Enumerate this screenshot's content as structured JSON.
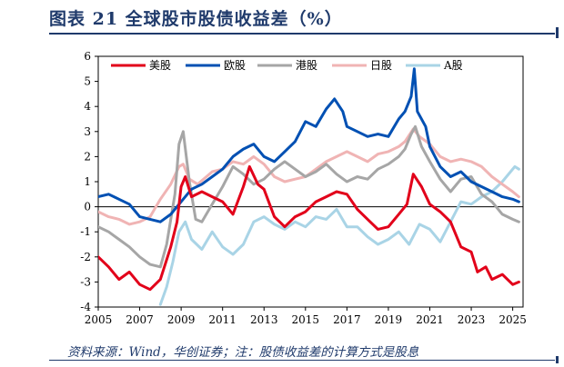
{
  "header": {
    "title": "图表 21   全球股市股债收益差（%）"
  },
  "footer": {
    "source": "资料来源：Wind，华创证券；注：股债收益差的计算方式是股息"
  },
  "chart_data": {
    "type": "line",
    "title": "",
    "xlabel": "",
    "ylabel": "",
    "xlim": [
      2005,
      2025.5
    ],
    "ylim": [
      -4,
      6
    ],
    "x_ticks": [
      "2005",
      "2007",
      "2009",
      "2011",
      "2013",
      "2015",
      "2017",
      "2019",
      "2021",
      "2023",
      "2025"
    ],
    "y_ticks": [
      "6",
      "5",
      "4",
      "3",
      "2",
      "1",
      "0",
      "-1",
      "-2",
      "-3",
      "-4"
    ],
    "grid": false,
    "legend_position": "top",
    "series": [
      {
        "name": "美股",
        "color": "#e2001a",
        "points": [
          [
            2005.0,
            -2.0
          ],
          [
            2005.5,
            -2.4
          ],
          [
            2006.0,
            -2.9
          ],
          [
            2006.5,
            -2.6
          ],
          [
            2007.0,
            -3.1
          ],
          [
            2007.5,
            -3.3
          ],
          [
            2008.0,
            -2.9
          ],
          [
            2008.5,
            -1.6
          ],
          [
            2008.8,
            -0.6
          ],
          [
            2009.0,
            0.8
          ],
          [
            2009.2,
            1.2
          ],
          [
            2009.5,
            0.4
          ],
          [
            2010.0,
            0.6
          ],
          [
            2010.5,
            0.4
          ],
          [
            2011.0,
            0.2
          ],
          [
            2011.5,
            -0.3
          ],
          [
            2012.0,
            0.8
          ],
          [
            2012.3,
            1.6
          ],
          [
            2012.7,
            0.9
          ],
          [
            2013.0,
            0.7
          ],
          [
            2013.5,
            -0.4
          ],
          [
            2014.0,
            -0.8
          ],
          [
            2014.5,
            -0.4
          ],
          [
            2015.0,
            -0.2
          ],
          [
            2015.5,
            0.2
          ],
          [
            2016.0,
            0.4
          ],
          [
            2016.5,
            0.6
          ],
          [
            2017.0,
            0.5
          ],
          [
            2017.5,
            -0.1
          ],
          [
            2018.0,
            -0.5
          ],
          [
            2018.5,
            -0.9
          ],
          [
            2019.0,
            -0.8
          ],
          [
            2019.5,
            -0.3
          ],
          [
            2019.9,
            0.1
          ],
          [
            2020.2,
            1.3
          ],
          [
            2020.6,
            0.8
          ],
          [
            2021.0,
            0.1
          ],
          [
            2021.5,
            -0.2
          ],
          [
            2022.0,
            -0.6
          ],
          [
            2022.5,
            -1.6
          ],
          [
            2023.0,
            -1.8
          ],
          [
            2023.3,
            -2.6
          ],
          [
            2023.7,
            -2.4
          ],
          [
            2024.0,
            -2.9
          ],
          [
            2024.5,
            -2.7
          ],
          [
            2025.0,
            -3.1
          ],
          [
            2025.3,
            -3.0
          ]
        ]
      },
      {
        "name": "欧股",
        "color": "#0050b3",
        "points": [
          [
            2005.0,
            0.4
          ],
          [
            2005.5,
            0.5
          ],
          [
            2006.0,
            0.3
          ],
          [
            2006.5,
            0.1
          ],
          [
            2007.0,
            -0.4
          ],
          [
            2007.5,
            -0.5
          ],
          [
            2008.0,
            -0.6
          ],
          [
            2008.5,
            -0.3
          ],
          [
            2009.0,
            0.2
          ],
          [
            2009.5,
            0.7
          ],
          [
            2010.0,
            0.9
          ],
          [
            2010.5,
            1.2
          ],
          [
            2011.0,
            1.5
          ],
          [
            2011.5,
            2.0
          ],
          [
            2012.0,
            2.3
          ],
          [
            2012.5,
            2.5
          ],
          [
            2013.0,
            2.0
          ],
          [
            2013.5,
            1.8
          ],
          [
            2014.0,
            2.2
          ],
          [
            2014.5,
            2.6
          ],
          [
            2015.0,
            3.4
          ],
          [
            2015.5,
            3.2
          ],
          [
            2016.0,
            3.9
          ],
          [
            2016.4,
            4.3
          ],
          [
            2016.8,
            3.8
          ],
          [
            2017.0,
            3.2
          ],
          [
            2017.5,
            3.0
          ],
          [
            2018.0,
            2.8
          ],
          [
            2018.5,
            2.9
          ],
          [
            2019.0,
            2.8
          ],
          [
            2019.5,
            3.5
          ],
          [
            2019.8,
            3.8
          ],
          [
            2020.1,
            4.4
          ],
          [
            2020.25,
            5.5
          ],
          [
            2020.4,
            3.8
          ],
          [
            2020.8,
            3.2
          ],
          [
            2021.0,
            2.4
          ],
          [
            2021.5,
            1.6
          ],
          [
            2022.0,
            1.2
          ],
          [
            2022.5,
            1.4
          ],
          [
            2023.0,
            1.0
          ],
          [
            2023.5,
            0.8
          ],
          [
            2024.0,
            0.6
          ],
          [
            2024.5,
            0.4
          ],
          [
            2025.0,
            0.3
          ],
          [
            2025.3,
            0.2
          ]
        ]
      },
      {
        "name": "港股",
        "color": "#a6a6a6",
        "points": [
          [
            2005.0,
            -0.8
          ],
          [
            2005.5,
            -1.0
          ],
          [
            2006.0,
            -1.3
          ],
          [
            2006.5,
            -1.6
          ],
          [
            2007.0,
            -2.0
          ],
          [
            2007.5,
            -2.3
          ],
          [
            2008.0,
            -2.4
          ],
          [
            2008.3,
            -1.5
          ],
          [
            2008.7,
            0.5
          ],
          [
            2008.9,
            2.5
          ],
          [
            2009.1,
            3.0
          ],
          [
            2009.4,
            1.0
          ],
          [
            2009.7,
            -0.5
          ],
          [
            2010.0,
            -0.6
          ],
          [
            2010.5,
            0.1
          ],
          [
            2011.0,
            0.8
          ],
          [
            2011.5,
            1.6
          ],
          [
            2012.0,
            1.3
          ],
          [
            2012.5,
            0.9
          ],
          [
            2013.0,
            1.1
          ],
          [
            2013.5,
            1.5
          ],
          [
            2014.0,
            1.8
          ],
          [
            2014.5,
            1.5
          ],
          [
            2015.0,
            1.2
          ],
          [
            2015.5,
            1.4
          ],
          [
            2016.0,
            1.7
          ],
          [
            2016.5,
            1.3
          ],
          [
            2017.0,
            1.0
          ],
          [
            2017.5,
            1.2
          ],
          [
            2018.0,
            1.1
          ],
          [
            2018.5,
            1.5
          ],
          [
            2019.0,
            1.7
          ],
          [
            2019.5,
            2.0
          ],
          [
            2019.8,
            2.3
          ],
          [
            2020.1,
            2.9
          ],
          [
            2020.3,
            3.2
          ],
          [
            2020.6,
            2.4
          ],
          [
            2021.0,
            1.8
          ],
          [
            2021.5,
            1.1
          ],
          [
            2022.0,
            0.6
          ],
          [
            2022.5,
            1.1
          ],
          [
            2023.0,
            1.2
          ],
          [
            2023.5,
            0.5
          ],
          [
            2024.0,
            0.2
          ],
          [
            2024.5,
            -0.3
          ],
          [
            2025.0,
            -0.5
          ],
          [
            2025.3,
            -0.6
          ]
        ]
      },
      {
        "name": "日股",
        "color": "#f0b4b4",
        "points": [
          [
            2005.0,
            -0.2
          ],
          [
            2005.5,
            -0.4
          ],
          [
            2006.0,
            -0.5
          ],
          [
            2006.5,
            -0.7
          ],
          [
            2007.0,
            -0.6
          ],
          [
            2007.5,
            -0.4
          ],
          [
            2008.0,
            0.3
          ],
          [
            2008.5,
            0.9
          ],
          [
            2008.9,
            1.6
          ],
          [
            2009.1,
            1.7
          ],
          [
            2009.4,
            1.1
          ],
          [
            2009.8,
            0.9
          ],
          [
            2010.5,
            1.4
          ],
          [
            2011.0,
            1.5
          ],
          [
            2011.5,
            1.8
          ],
          [
            2012.0,
            1.7
          ],
          [
            2012.5,
            2.0
          ],
          [
            2013.0,
            1.7
          ],
          [
            2013.5,
            1.2
          ],
          [
            2014.0,
            1.0
          ],
          [
            2014.5,
            1.1
          ],
          [
            2015.0,
            1.2
          ],
          [
            2015.5,
            1.5
          ],
          [
            2016.0,
            1.8
          ],
          [
            2016.5,
            2.0
          ],
          [
            2017.0,
            2.2
          ],
          [
            2017.5,
            2.0
          ],
          [
            2018.0,
            1.8
          ],
          [
            2018.5,
            2.1
          ],
          [
            2019.0,
            2.2
          ],
          [
            2019.5,
            2.4
          ],
          [
            2019.8,
            2.6
          ],
          [
            2020.2,
            3.1
          ],
          [
            2020.5,
            2.8
          ],
          [
            2021.0,
            2.5
          ],
          [
            2021.5,
            2.0
          ],
          [
            2022.0,
            1.8
          ],
          [
            2022.5,
            1.9
          ],
          [
            2023.0,
            1.8
          ],
          [
            2023.5,
            1.6
          ],
          [
            2024.0,
            1.2
          ],
          [
            2024.5,
            0.9
          ],
          [
            2025.0,
            0.6
          ],
          [
            2025.3,
            0.4
          ]
        ]
      },
      {
        "name": "A股",
        "color": "#a9d4e6",
        "points": [
          [
            2008.0,
            -3.9
          ],
          [
            2008.3,
            -3.2
          ],
          [
            2008.6,
            -2.2
          ],
          [
            2008.9,
            -1.0
          ],
          [
            2009.2,
            -0.6
          ],
          [
            2009.5,
            -1.3
          ],
          [
            2010.0,
            -1.7
          ],
          [
            2010.5,
            -1.0
          ],
          [
            2011.0,
            -1.6
          ],
          [
            2011.5,
            -1.9
          ],
          [
            2012.0,
            -1.5
          ],
          [
            2012.5,
            -0.6
          ],
          [
            2013.0,
            -0.4
          ],
          [
            2013.5,
            -0.7
          ],
          [
            2014.0,
            -0.9
          ],
          [
            2014.5,
            -0.6
          ],
          [
            2015.0,
            -0.8
          ],
          [
            2015.5,
            -0.4
          ],
          [
            2016.0,
            -0.5
          ],
          [
            2016.5,
            -0.1
          ],
          [
            2017.0,
            -0.8
          ],
          [
            2017.5,
            -0.8
          ],
          [
            2018.0,
            -1.2
          ],
          [
            2018.5,
            -1.5
          ],
          [
            2019.0,
            -1.3
          ],
          [
            2019.5,
            -1.0
          ],
          [
            2020.0,
            -1.5
          ],
          [
            2020.5,
            -0.7
          ],
          [
            2021.0,
            -0.9
          ],
          [
            2021.5,
            -1.4
          ],
          [
            2022.0,
            -0.6
          ],
          [
            2022.5,
            0.2
          ],
          [
            2023.0,
            0.1
          ],
          [
            2023.5,
            0.4
          ],
          [
            2024.0,
            0.6
          ],
          [
            2024.5,
            1.0
          ],
          [
            2024.9,
            1.4
          ],
          [
            2025.1,
            1.6
          ],
          [
            2025.3,
            1.5
          ]
        ]
      }
    ]
  }
}
